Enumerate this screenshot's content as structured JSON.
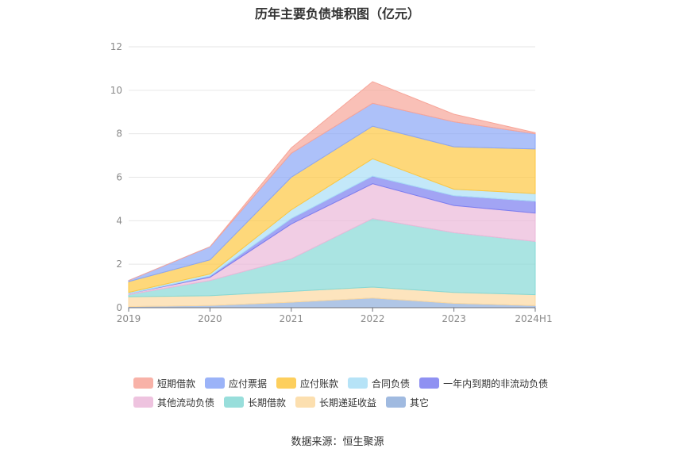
{
  "chart_data": {
    "type": "area",
    "stacked": true,
    "title": "历年主要负债堆积图（亿元）",
    "categories": [
      "2019",
      "2020",
      "2021",
      "2022",
      "2023",
      "2024H1"
    ],
    "ylim": [
      0,
      12
    ],
    "yticks": [
      "0",
      "2",
      "4",
      "6",
      "8",
      "10",
      "12"
    ],
    "grid": true,
    "legend_position": "bottom",
    "series": [
      {
        "name": "其它",
        "color": "#8faedb",
        "values": [
          0.05,
          0.1,
          0.25,
          0.45,
          0.2,
          0.1
        ]
      },
      {
        "name": "长期递延收益",
        "color": "#fcd9a1",
        "values": [
          0.45,
          0.45,
          0.5,
          0.5,
          0.5,
          0.5
        ]
      },
      {
        "name": "长期借款",
        "color": "#86d8d5",
        "values": [
          0.1,
          0.7,
          1.5,
          3.15,
          2.75,
          2.45
        ]
      },
      {
        "name": "其他流动负债",
        "color": "#ebb8d9",
        "values": [
          0.05,
          0.15,
          1.6,
          1.6,
          1.25,
          1.3
        ]
      },
      {
        "name": "一年内到期的非流动负债",
        "color": "#7b7ef0",
        "values": [
          0.0,
          0.05,
          0.25,
          0.35,
          0.45,
          0.55
        ]
      },
      {
        "name": "合同负债",
        "color": "#a9def6",
        "values": [
          0.05,
          0.1,
          0.4,
          0.8,
          0.3,
          0.35
        ]
      },
      {
        "name": "应付账款",
        "color": "#fdc741",
        "values": [
          0.5,
          0.65,
          1.5,
          1.5,
          1.95,
          2.05
        ]
      },
      {
        "name": "应付票据",
        "color": "#8aa6f7",
        "values": [
          0.05,
          0.6,
          1.1,
          1.05,
          1.15,
          0.7
        ]
      },
      {
        "name": "短期借款",
        "color": "#f7a599",
        "values": [
          0.0,
          0.0,
          0.25,
          1.0,
          0.35,
          0.05
        ]
      }
    ]
  },
  "legend_rows": [
    [
      "短期借款",
      "应付票据",
      "应付账款",
      "合同负债",
      "一年内到期的非流动负债"
    ],
    [
      "其他流动负债",
      "长期借款",
      "长期递延收益",
      "其它"
    ]
  ],
  "source_text": "数据来源：恒生聚源"
}
